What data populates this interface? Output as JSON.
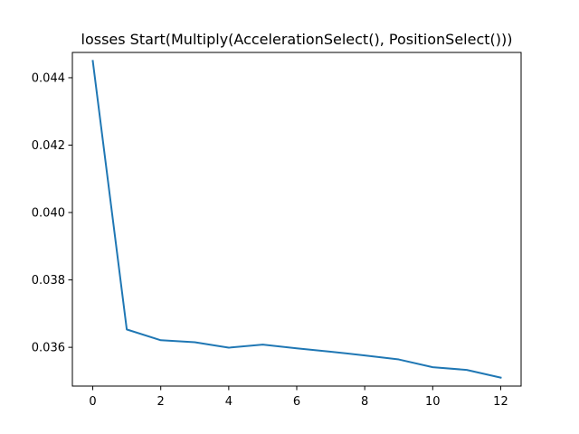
{
  "chart_data": {
    "type": "line",
    "title": "losses Start(Multiply(AccelerationSelect(), PositionSelect()))",
    "xlabel": "",
    "ylabel": "",
    "xlim": [
      -0.6,
      12.6
    ],
    "ylim": [
      0.03485,
      0.04475
    ],
    "xticks": [
      0,
      2,
      4,
      6,
      8,
      10,
      12
    ],
    "xtick_labels": [
      "0",
      "2",
      "4",
      "6",
      "8",
      "10",
      "12"
    ],
    "yticks": [
      0.036,
      0.038,
      0.04,
      0.042,
      0.044
    ],
    "ytick_labels": [
      "0.036",
      "0.038",
      "0.040",
      "0.042",
      "0.044"
    ],
    "grid": false,
    "series": [
      {
        "color": "#1f77b4",
        "x": [
          0,
          1,
          2,
          3,
          4,
          5,
          6,
          7,
          8,
          9,
          10,
          11,
          12
        ],
        "y": [
          0.0445,
          0.03653,
          0.03621,
          0.03615,
          0.03599,
          0.03608,
          0.03597,
          0.03587,
          0.03576,
          0.03564,
          0.03541,
          0.03533,
          0.0351
        ]
      }
    ]
  }
}
